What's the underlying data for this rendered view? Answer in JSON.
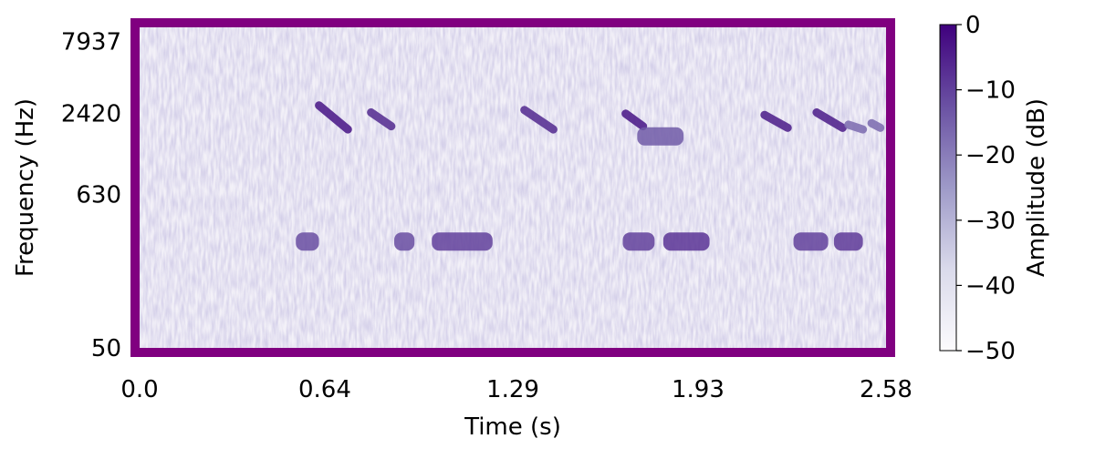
{
  "chart_data": {
    "type": "heatmap",
    "subtype": "spectrogram",
    "title": "",
    "xlabel": "Time (s)",
    "ylabel": "Frequency (Hz)",
    "xlim": [
      0,
      2.58
    ],
    "ylim": [
      50,
      10000
    ],
    "yscale": "log",
    "x_ticks": [
      0.0,
      0.64,
      1.29,
      1.93,
      2.58
    ],
    "x_tick_labels": [
      "0.0",
      "0.64",
      "1.29",
      "1.93",
      "2.58"
    ],
    "y_ticks": [
      50,
      630,
      2420,
      7937
    ],
    "y_tick_labels": [
      "50",
      "630",
      "2420",
      "7937"
    ],
    "colorbar": {
      "label": "Amplitude (dB)",
      "range": [
        -50,
        0
      ],
      "ticks": [
        0,
        -10,
        -20,
        -30,
        -40,
        -50
      ],
      "tick_labels": [
        "0",
        "−10",
        "−20",
        "−30",
        "−40",
        "−50"
      ],
      "colormap": "Purples"
    },
    "frame_color": "#800080",
    "grid": false,
    "events": [
      {
        "kind": "chirp",
        "t_start": 0.62,
        "t_end": 0.72,
        "f_start": 2750,
        "f_end": 1850,
        "level_db": -5
      },
      {
        "kind": "chirp",
        "t_start": 0.8,
        "t_end": 0.87,
        "f_start": 2450,
        "f_end": 1950,
        "level_db": -8
      },
      {
        "kind": "chirp",
        "t_start": 1.33,
        "t_end": 1.43,
        "f_start": 2550,
        "f_end": 1850,
        "level_db": -8
      },
      {
        "kind": "chirp",
        "t_start": 1.68,
        "t_end": 1.74,
        "f_start": 2400,
        "f_end": 1950,
        "level_db": -5
      },
      {
        "kind": "tone",
        "t_start": 1.72,
        "t_end": 1.88,
        "f": 1650,
        "level_db": -14
      },
      {
        "kind": "chirp",
        "t_start": 2.16,
        "t_end": 2.24,
        "f_start": 2350,
        "f_end": 1900,
        "level_db": -6
      },
      {
        "kind": "chirp",
        "t_start": 2.34,
        "t_end": 2.43,
        "f_start": 2450,
        "f_end": 1900,
        "level_db": -6
      },
      {
        "kind": "chirp",
        "t_start": 2.45,
        "t_end": 2.5,
        "f_start": 2000,
        "f_end": 1850,
        "level_db": -18
      },
      {
        "kind": "chirp",
        "t_start": 2.53,
        "t_end": 2.56,
        "f_start": 2050,
        "f_end": 1900,
        "level_db": -18
      },
      {
        "kind": "tone",
        "t_start": 0.54,
        "t_end": 0.62,
        "f": 290,
        "level_db": -12
      },
      {
        "kind": "tone",
        "t_start": 0.88,
        "t_end": 0.95,
        "f": 290,
        "level_db": -12
      },
      {
        "kind": "tone",
        "t_start": 1.01,
        "t_end": 1.22,
        "f": 290,
        "level_db": -10
      },
      {
        "kind": "tone",
        "t_start": 1.67,
        "t_end": 1.78,
        "f": 290,
        "level_db": -10
      },
      {
        "kind": "tone",
        "t_start": 1.81,
        "t_end": 1.97,
        "f": 290,
        "level_db": -8
      },
      {
        "kind": "tone",
        "t_start": 2.26,
        "t_end": 2.38,
        "f": 290,
        "level_db": -10
      },
      {
        "kind": "tone",
        "t_start": 2.4,
        "t_end": 2.5,
        "f": 290,
        "level_db": -9
      }
    ]
  }
}
